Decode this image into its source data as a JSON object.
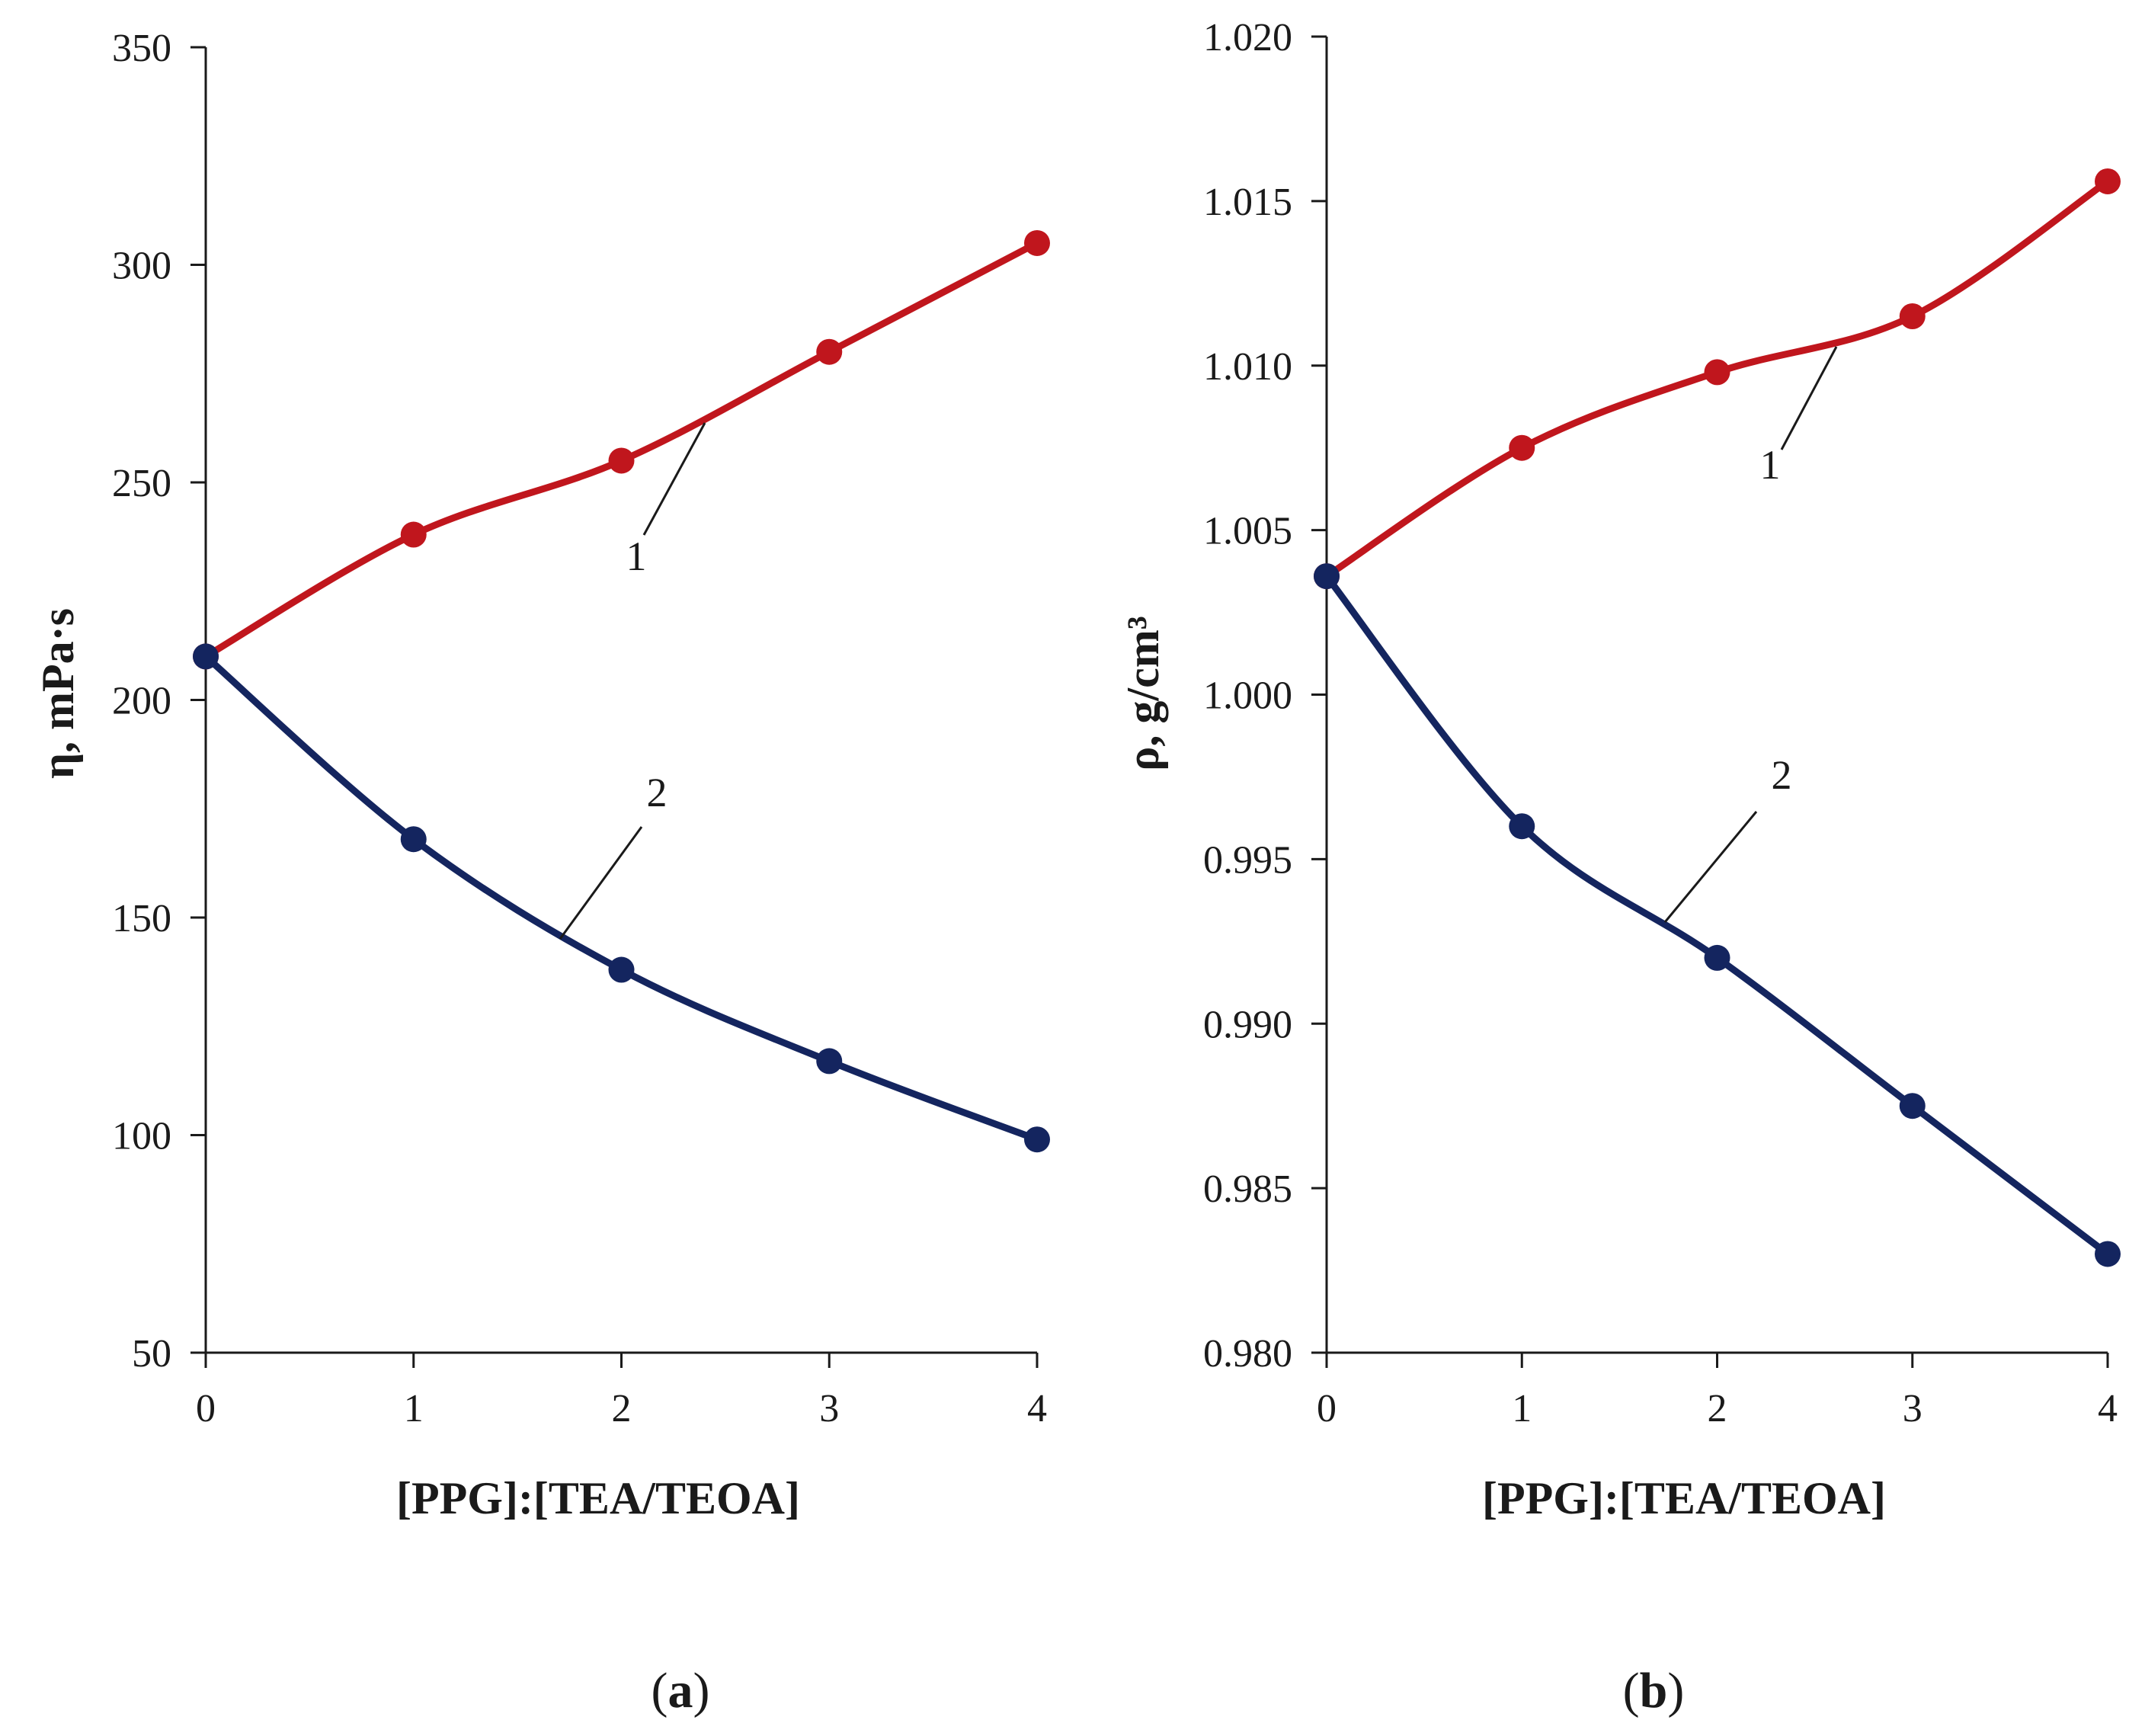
{
  "colors": {
    "series1": "#c0161d",
    "series2": "#14255f",
    "axis": "#1a1a1a"
  },
  "chart_data": [
    {
      "type": "line",
      "panel_label": "a",
      "xlabel": "[PPG]:[TEA/TEOA]",
      "ylabel": "η, mPa·s",
      "x": [
        0,
        1,
        2,
        3,
        4
      ],
      "xlim": [
        0,
        4
      ],
      "ylim": [
        50,
        350
      ],
      "xticks": [
        "0",
        "1",
        "2",
        "3",
        "4"
      ],
      "yticks": [
        "50",
        "100",
        "150",
        "200",
        "250",
        "300",
        "350"
      ],
      "grid": false,
      "series": [
        {
          "name": "1",
          "values": [
            210,
            238,
            255,
            280,
            305
          ]
        },
        {
          "name": "2",
          "values": [
            210,
            168,
            138,
            117,
            99
          ]
        }
      ]
    },
    {
      "type": "line",
      "panel_label": "b",
      "xlabel": "[PPG]:[TEA/TEOA]",
      "ylabel": "ρ, g/cm³",
      "x": [
        0,
        1,
        2,
        3,
        4
      ],
      "xlim": [
        0,
        4
      ],
      "ylim": [
        0.98,
        1.02
      ],
      "xticks": [
        "0",
        "1",
        "2",
        "3",
        "4"
      ],
      "yticks": [
        "0.980",
        "0.985",
        "0.990",
        "0.995",
        "1.000",
        "1.005",
        "1.010",
        "1.015",
        "1.020"
      ],
      "grid": false,
      "series": [
        {
          "name": "1",
          "values": [
            1.0036,
            1.0075,
            1.0098,
            1.0115,
            1.0156
          ]
        },
        {
          "name": "2",
          "values": [
            1.0036,
            0.996,
            0.992,
            0.9875,
            0.983
          ]
        }
      ]
    }
  ]
}
